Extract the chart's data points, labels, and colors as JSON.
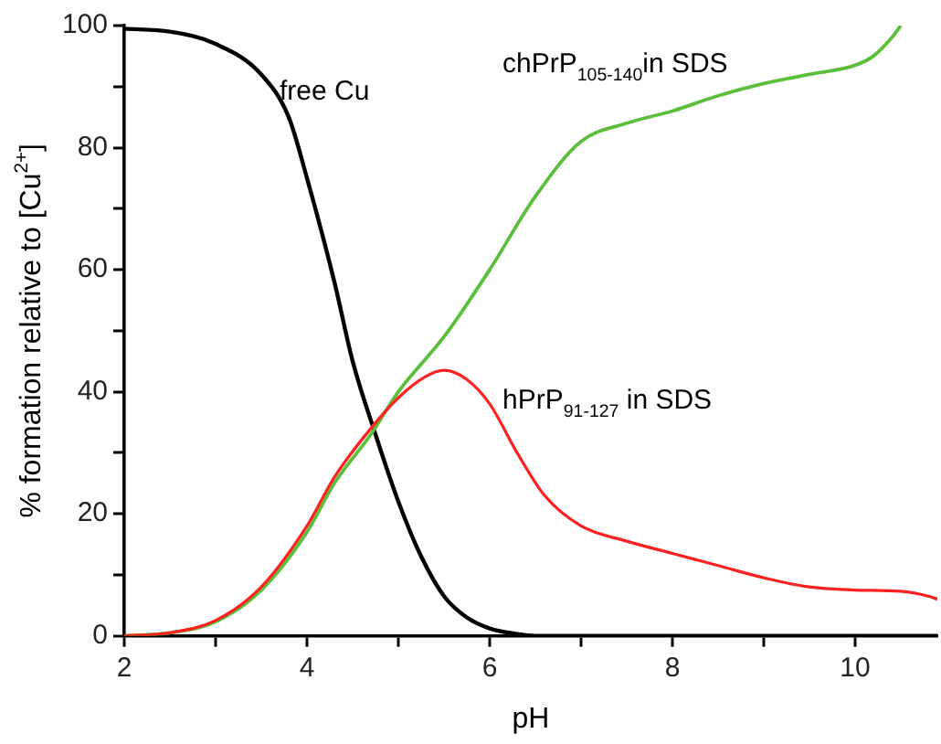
{
  "chart_data": {
    "type": "line",
    "xlabel": "pH",
    "ylabel": "% formation relative to [Cu$^{2+}$]",
    "xlim": [
      2,
      10.9
    ],
    "ylim": [
      0,
      100
    ],
    "xticks": [
      2,
      {
        "value": 3,
        "label": null
      },
      4,
      {
        "value": 5,
        "label": null
      },
      6,
      {
        "value": 7,
        "label": null
      },
      8,
      {
        "value": 9,
        "label": null
      },
      10
    ],
    "yticks": [
      0,
      {
        "value": 10,
        "label": null
      },
      20,
      {
        "value": 30,
        "label": null
      },
      40,
      {
        "value": 50,
        "label": null
      },
      60,
      {
        "value": 70,
        "label": null
      },
      80,
      {
        "value": 90,
        "label": null
      },
      100
    ],
    "grid": false,
    "legend": false,
    "marker": "none",
    "line_style": "solid",
    "series": [
      {
        "name": "free Cu",
        "color": "#000000",
        "x": [
          2,
          2.5,
          3,
          3.5,
          3.8,
          4,
          4.3,
          4.5,
          4.75,
          5,
          5.25,
          5.5,
          5.75,
          6,
          6.3,
          6.5,
          7,
          8,
          9,
          10,
          10.9
        ],
        "values": [
          99.5,
          99,
          97,
          92,
          85,
          75,
          58,
          45,
          33,
          22,
          13,
          6.5,
          3,
          1.2,
          0.3,
          0,
          0,
          0,
          0,
          0,
          0
        ]
      },
      {
        "name": "chPrP$_{105-140}$in SDS",
        "color": "#5cbf3c",
        "x": [
          2,
          2.5,
          3,
          3.5,
          4,
          4.3,
          4.7,
          5,
          5.5,
          6,
          6.5,
          7,
          7.5,
          8,
          8.5,
          9,
          9.5,
          10,
          10.2,
          10.4,
          10.5
        ],
        "values": [
          0,
          0.5,
          2.3,
          7.5,
          17,
          25,
          33,
          40,
          49,
          60,
          72,
          81,
          84,
          86,
          88.5,
          90.5,
          92,
          93.5,
          95,
          98,
          100
        ]
      },
      {
        "name": "hPrP$_{91-127}$ in SDS",
        "color": "#ff2020",
        "x": [
          2,
          2.5,
          3,
          3.5,
          4,
          4.3,
          4.7,
          5,
          5.3,
          5.5,
          5.75,
          6,
          6.3,
          6.6,
          7,
          7.5,
          8,
          8.5,
          9,
          9.5,
          10,
          10.5,
          10.8,
          10.9
        ],
        "values": [
          0,
          0.5,
          2.5,
          8,
          18,
          26,
          34,
          39,
          42.5,
          43.5,
          42,
          38,
          30,
          23,
          18,
          15.5,
          13.5,
          11.5,
          9.5,
          8,
          7.5,
          7.3,
          6.5,
          6
        ]
      }
    ]
  }
}
